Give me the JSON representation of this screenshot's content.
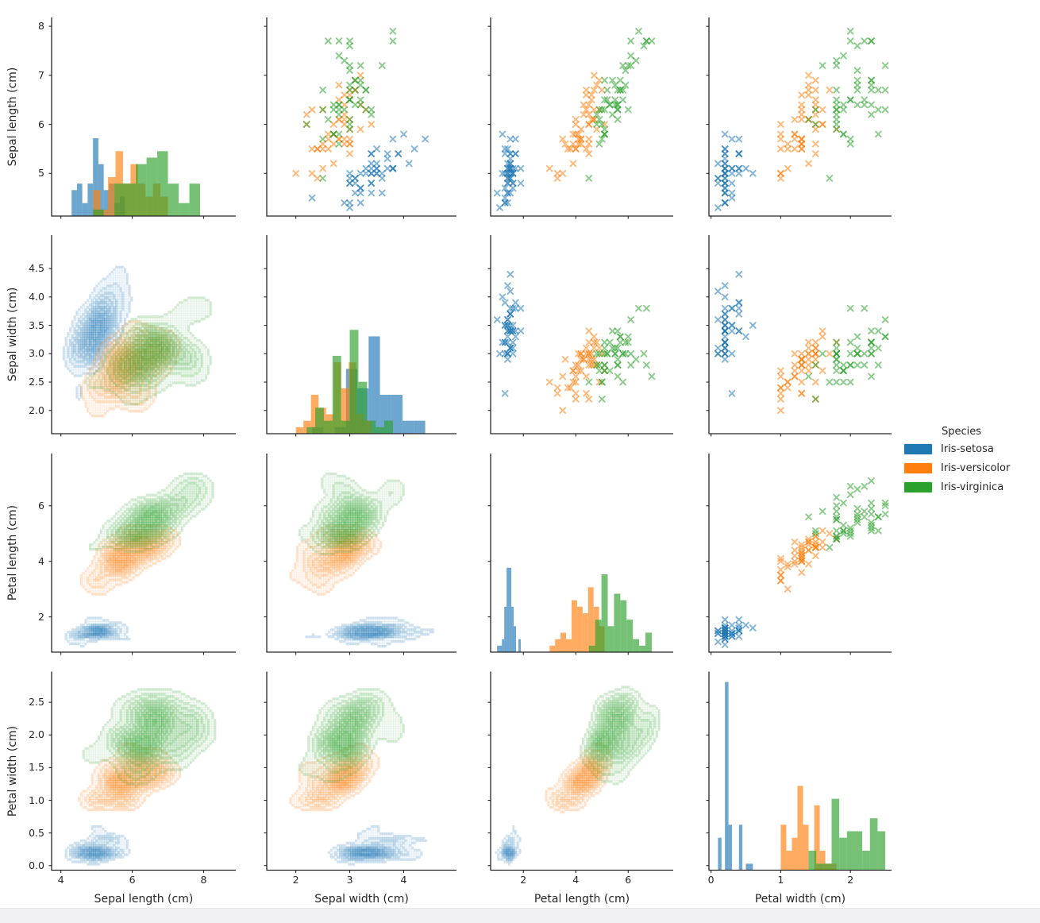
{
  "chart_data": {
    "type": "pairplot",
    "grid": {
      "diagonal": "histogram",
      "upper_triangle": "scatter",
      "lower_triangle": "kde"
    },
    "legend": {
      "title": "Species",
      "position": "right"
    },
    "species": [
      {
        "name": "Iris-setosa",
        "color": "#1f77b4",
        "count": 50
      },
      {
        "name": "Iris-versicolor",
        "color": "#ff7f0e",
        "count": 50
      },
      {
        "name": "Iris-virginica",
        "color": "#2ca02c",
        "count": 50
      }
    ],
    "variables": [
      {
        "key": "sepal_length",
        "label": "Sepal length (cm)",
        "x": {
          "min": 3.74,
          "max": 8.9,
          "ticks": [
            {
              "v": 4,
              "label": "4"
            },
            {
              "v": 6,
              "label": "6"
            },
            {
              "v": 8,
              "label": "8"
            }
          ]
        },
        "y": {
          "min": 4.13,
          "max": 8.18,
          "ticks": [
            {
              "v": 5,
              "label": "5"
            },
            {
              "v": 6,
              "label": "6"
            },
            {
              "v": 7,
              "label": "7"
            },
            {
              "v": 8,
              "label": "8"
            }
          ]
        }
      },
      {
        "key": "sepal_width",
        "label": "Sepal width (cm)",
        "x": {
          "min": 1.46,
          "max": 4.98,
          "ticks": [
            {
              "v": 2,
              "label": "2"
            },
            {
              "v": 3,
              "label": "3"
            },
            {
              "v": 4,
              "label": "4"
            }
          ]
        },
        "y": {
          "min": 1.59,
          "max": 5.09,
          "ticks": [
            {
              "v": 2.0,
              "label": "2.0"
            },
            {
              "v": 2.5,
              "label": "2.5"
            },
            {
              "v": 3.0,
              "label": "3.0"
            },
            {
              "v": 3.5,
              "label": "3.5"
            },
            {
              "v": 4.0,
              "label": "4.0"
            },
            {
              "v": 4.5,
              "label": "4.5"
            }
          ]
        }
      },
      {
        "key": "petal_length",
        "label": "Petal length (cm)",
        "x": {
          "min": 0.75,
          "max": 7.72,
          "ticks": [
            {
              "v": 2,
              "label": "2"
            },
            {
              "v": 4,
              "label": "4"
            },
            {
              "v": 6,
              "label": "6"
            }
          ]
        },
        "y": {
          "min": 0.73,
          "max": 7.88,
          "ticks": [
            {
              "v": 2,
              "label": "2"
            },
            {
              "v": 4,
              "label": "4"
            },
            {
              "v": 6,
              "label": "6"
            }
          ]
        }
      },
      {
        "key": "petal_width",
        "label": "Petal width (cm)",
        "x": {
          "min": -0.03,
          "max": 2.59,
          "ticks": [
            {
              "v": 0,
              "label": "0"
            },
            {
              "v": 1,
              "label": "1"
            },
            {
              "v": 2,
              "label": "2"
            }
          ]
        },
        "y": {
          "min": -0.07,
          "max": 2.97,
          "ticks": [
            {
              "v": 0.0,
              "label": "0.0"
            },
            {
              "v": 0.5,
              "label": "0.5"
            },
            {
              "v": 1.0,
              "label": "1.0"
            },
            {
              "v": 1.5,
              "label": "1.5"
            },
            {
              "v": 2.0,
              "label": "2.0"
            },
            {
              "v": 2.5,
              "label": "2.5"
            }
          ]
        }
      }
    ],
    "hist_bins": 10,
    "diag_count_max": 30.6,
    "hist_alpha": 0.65,
    "scatter_alpha": 0.55,
    "kde": {
      "levels": 10,
      "thresh": 0.06,
      "bw_factor": 0.52,
      "band_alpha": 0.042,
      "line_alpha": 0.16
    },
    "style": {
      "axis_color": "#262626",
      "text_color": "#262626",
      "background": "#ffffff",
      "footer_strip": "#f0f0f2"
    },
    "points": {
      "sepal_length": [
        5.1,
        4.9,
        4.7,
        4.6,
        5.0,
        5.4,
        4.6,
        5.0,
        4.4,
        4.9,
        5.4,
        4.8,
        4.8,
        4.3,
        5.8,
        5.7,
        5.4,
        5.1,
        5.7,
        5.1,
        5.4,
        5.1,
        4.6,
        5.1,
        4.8,
        5.0,
        5.0,
        5.2,
        5.2,
        4.7,
        4.8,
        5.4,
        5.2,
        5.5,
        4.9,
        5.0,
        5.5,
        4.9,
        4.4,
        5.1,
        5.0,
        4.5,
        4.4,
        5.0,
        5.1,
        4.8,
        5.1,
        4.6,
        5.3,
        5.0,
        7.0,
        6.4,
        6.9,
        5.5,
        6.5,
        5.7,
        6.3,
        4.9,
        6.6,
        5.2,
        5.0,
        5.9,
        6.0,
        6.1,
        5.6,
        6.7,
        5.6,
        5.8,
        6.2,
        5.6,
        5.9,
        6.1,
        6.3,
        6.1,
        6.4,
        6.6,
        6.8,
        6.7,
        6.0,
        5.7,
        5.5,
        5.5,
        5.8,
        6.0,
        5.4,
        6.0,
        6.7,
        6.3,
        5.6,
        5.5,
        5.5,
        6.1,
        5.8,
        5.0,
        5.6,
        5.7,
        5.7,
        6.2,
        5.1,
        5.7,
        6.3,
        5.8,
        7.1,
        6.3,
        6.5,
        7.6,
        4.9,
        7.3,
        6.7,
        7.2,
        6.5,
        6.4,
        6.8,
        5.7,
        5.8,
        6.4,
        6.5,
        7.7,
        7.7,
        6.0,
        6.9,
        5.6,
        7.7,
        6.3,
        6.7,
        7.2,
        6.2,
        6.1,
        6.4,
        7.2,
        7.4,
        7.9,
        6.4,
        6.3,
        6.1,
        7.7,
        6.3,
        6.4,
        6.0,
        6.9,
        6.7,
        6.9,
        5.8,
        6.8,
        6.7,
        6.7,
        6.3,
        6.5,
        6.2,
        5.9
      ],
      "sepal_width": [
        3.5,
        3.0,
        3.2,
        3.1,
        3.6,
        3.9,
        3.4,
        3.4,
        2.9,
        3.1,
        3.7,
        3.4,
        3.0,
        3.0,
        4.0,
        4.4,
        3.9,
        3.5,
        3.8,
        3.8,
        3.4,
        3.7,
        3.6,
        3.3,
        3.4,
        3.0,
        3.4,
        3.5,
        3.4,
        3.2,
        3.1,
        3.4,
        4.1,
        4.2,
        3.1,
        3.2,
        3.5,
        3.6,
        3.0,
        3.4,
        3.5,
        2.3,
        3.2,
        3.5,
        3.8,
        3.0,
        3.8,
        3.2,
        3.7,
        3.3,
        3.2,
        3.2,
        3.1,
        2.3,
        2.8,
        2.8,
        3.3,
        2.4,
        2.9,
        2.7,
        2.0,
        3.0,
        2.2,
        2.9,
        2.9,
        3.1,
        3.0,
        2.7,
        2.2,
        2.5,
        3.2,
        2.8,
        2.5,
        2.8,
        2.9,
        3.0,
        2.8,
        3.0,
        2.9,
        2.6,
        2.4,
        2.4,
        2.7,
        2.7,
        3.0,
        3.4,
        3.1,
        2.3,
        3.0,
        2.5,
        2.6,
        3.0,
        2.6,
        2.3,
        2.7,
        3.0,
        2.9,
        2.9,
        2.5,
        2.8,
        3.3,
        2.7,
        3.0,
        2.9,
        3.0,
        3.0,
        2.5,
        2.9,
        2.5,
        3.6,
        3.2,
        2.7,
        3.0,
        2.5,
        2.8,
        3.2,
        3.0,
        3.8,
        2.6,
        2.2,
        3.2,
        2.8,
        2.8,
        2.7,
        3.3,
        3.2,
        2.8,
        3.0,
        2.8,
        3.0,
        2.8,
        3.8,
        2.8,
        2.8,
        2.6,
        3.0,
        3.4,
        3.1,
        3.0,
        3.1,
        3.1,
        3.1,
        2.7,
        3.2,
        3.3,
        3.0,
        2.5,
        3.0,
        3.4,
        3.0
      ],
      "petal_length": [
        1.4,
        1.4,
        1.3,
        1.5,
        1.4,
        1.7,
        1.4,
        1.5,
        1.4,
        1.5,
        1.5,
        1.6,
        1.4,
        1.1,
        1.2,
        1.5,
        1.3,
        1.4,
        1.7,
        1.5,
        1.7,
        1.5,
        1.0,
        1.7,
        1.9,
        1.6,
        1.6,
        1.5,
        1.4,
        1.6,
        1.6,
        1.5,
        1.5,
        1.4,
        1.5,
        1.2,
        1.3,
        1.4,
        1.3,
        1.5,
        1.3,
        1.3,
        1.3,
        1.6,
        1.9,
        1.4,
        1.6,
        1.4,
        1.5,
        1.4,
        4.7,
        4.5,
        4.9,
        4.0,
        4.6,
        4.5,
        4.7,
        3.3,
        4.6,
        3.9,
        3.5,
        4.2,
        4.0,
        4.7,
        3.6,
        4.4,
        4.5,
        4.1,
        4.5,
        3.9,
        4.8,
        4.0,
        4.9,
        4.7,
        4.3,
        4.4,
        4.8,
        5.0,
        4.5,
        3.5,
        3.8,
        3.7,
        3.9,
        5.1,
        4.5,
        4.5,
        4.7,
        4.4,
        4.1,
        4.0,
        4.4,
        4.6,
        4.0,
        3.3,
        4.2,
        4.2,
        4.2,
        4.3,
        3.0,
        4.1,
        6.0,
        5.1,
        5.9,
        5.6,
        5.8,
        6.6,
        4.5,
        6.3,
        5.8,
        6.1,
        5.1,
        5.3,
        5.5,
        5.0,
        5.1,
        5.3,
        5.5,
        6.7,
        6.9,
        5.0,
        5.7,
        4.9,
        6.7,
        4.9,
        5.7,
        6.0,
        4.8,
        4.9,
        5.6,
        5.8,
        6.1,
        6.4,
        5.6,
        5.1,
        5.6,
        6.1,
        5.6,
        5.5,
        4.8,
        5.4,
        5.6,
        5.1,
        5.1,
        5.9,
        5.7,
        5.2,
        5.0,
        5.2,
        5.4,
        5.1
      ],
      "petal_width": [
        0.2,
        0.2,
        0.2,
        0.2,
        0.2,
        0.4,
        0.3,
        0.2,
        0.2,
        0.1,
        0.2,
        0.2,
        0.1,
        0.1,
        0.2,
        0.4,
        0.4,
        0.3,
        0.3,
        0.3,
        0.2,
        0.4,
        0.2,
        0.5,
        0.2,
        0.2,
        0.4,
        0.2,
        0.2,
        0.2,
        0.2,
        0.4,
        0.1,
        0.2,
        0.2,
        0.2,
        0.2,
        0.1,
        0.2,
        0.2,
        0.3,
        0.3,
        0.2,
        0.6,
        0.4,
        0.3,
        0.2,
        0.2,
        0.2,
        0.2,
        1.4,
        1.5,
        1.5,
        1.3,
        1.5,
        1.3,
        1.6,
        1.0,
        1.3,
        1.4,
        1.0,
        1.5,
        1.0,
        1.4,
        1.3,
        1.4,
        1.5,
        1.0,
        1.5,
        1.1,
        1.8,
        1.3,
        1.5,
        1.2,
        1.3,
        1.4,
        1.4,
        1.7,
        1.5,
        1.0,
        1.1,
        1.0,
        1.2,
        1.6,
        1.5,
        1.6,
        1.5,
        1.3,
        1.3,
        1.3,
        1.2,
        1.4,
        1.2,
        1.0,
        1.3,
        1.2,
        1.3,
        1.3,
        1.1,
        1.3,
        2.5,
        1.9,
        2.1,
        1.8,
        2.2,
        2.1,
        1.7,
        1.8,
        1.8,
        2.5,
        2.0,
        1.9,
        2.1,
        2.0,
        2.4,
        2.3,
        1.8,
        2.2,
        2.3,
        1.5,
        2.3,
        2.0,
        2.0,
        1.8,
        2.1,
        1.8,
        1.8,
        1.8,
        2.1,
        1.6,
        1.9,
        2.0,
        2.2,
        1.5,
        1.4,
        2.3,
        2.4,
        1.8,
        1.8,
        2.1,
        2.4,
        2.3,
        1.9,
        2.3,
        2.5,
        2.3,
        1.9,
        2.0,
        2.3,
        1.8
      ]
    }
  }
}
